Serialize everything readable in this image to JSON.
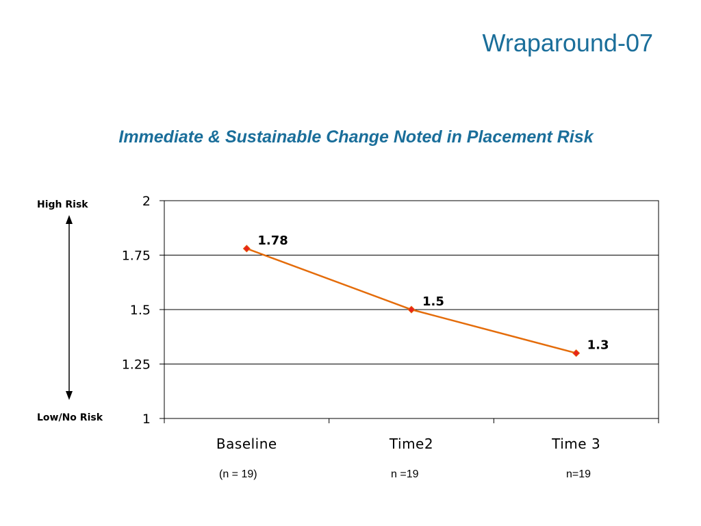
{
  "slide": {
    "title": "Wraparound-07",
    "chart_title": "Immediate & Sustainable Change Noted in Placement Risk",
    "high_risk_label": "High Risk",
    "low_risk_label": "Low/No Risk",
    "sample_sizes": [
      "(n = 19)",
      "n =19",
      "n=19"
    ]
  },
  "colors": {
    "title": "#1a6e9a",
    "line": "#e46c0a",
    "marker": "#e8251b"
  },
  "chart_data": {
    "type": "line",
    "title": "Immediate & Sustainable Change Noted in Placement Risk",
    "categories": [
      "Baseline",
      "Time2",
      "Time 3"
    ],
    "series": [
      {
        "values": [
          1.78,
          1.5,
          1.3
        ]
      }
    ],
    "data_labels": [
      "1.78",
      "1.5",
      "1.3"
    ],
    "ylim": [
      1,
      2
    ],
    "yticks": [
      1,
      1.25,
      1.5,
      1.75,
      2
    ],
    "ytick_labels": [
      "1",
      "1.25",
      "1.5",
      "1.75",
      "2"
    ],
    "grid": true,
    "legend": "none"
  }
}
